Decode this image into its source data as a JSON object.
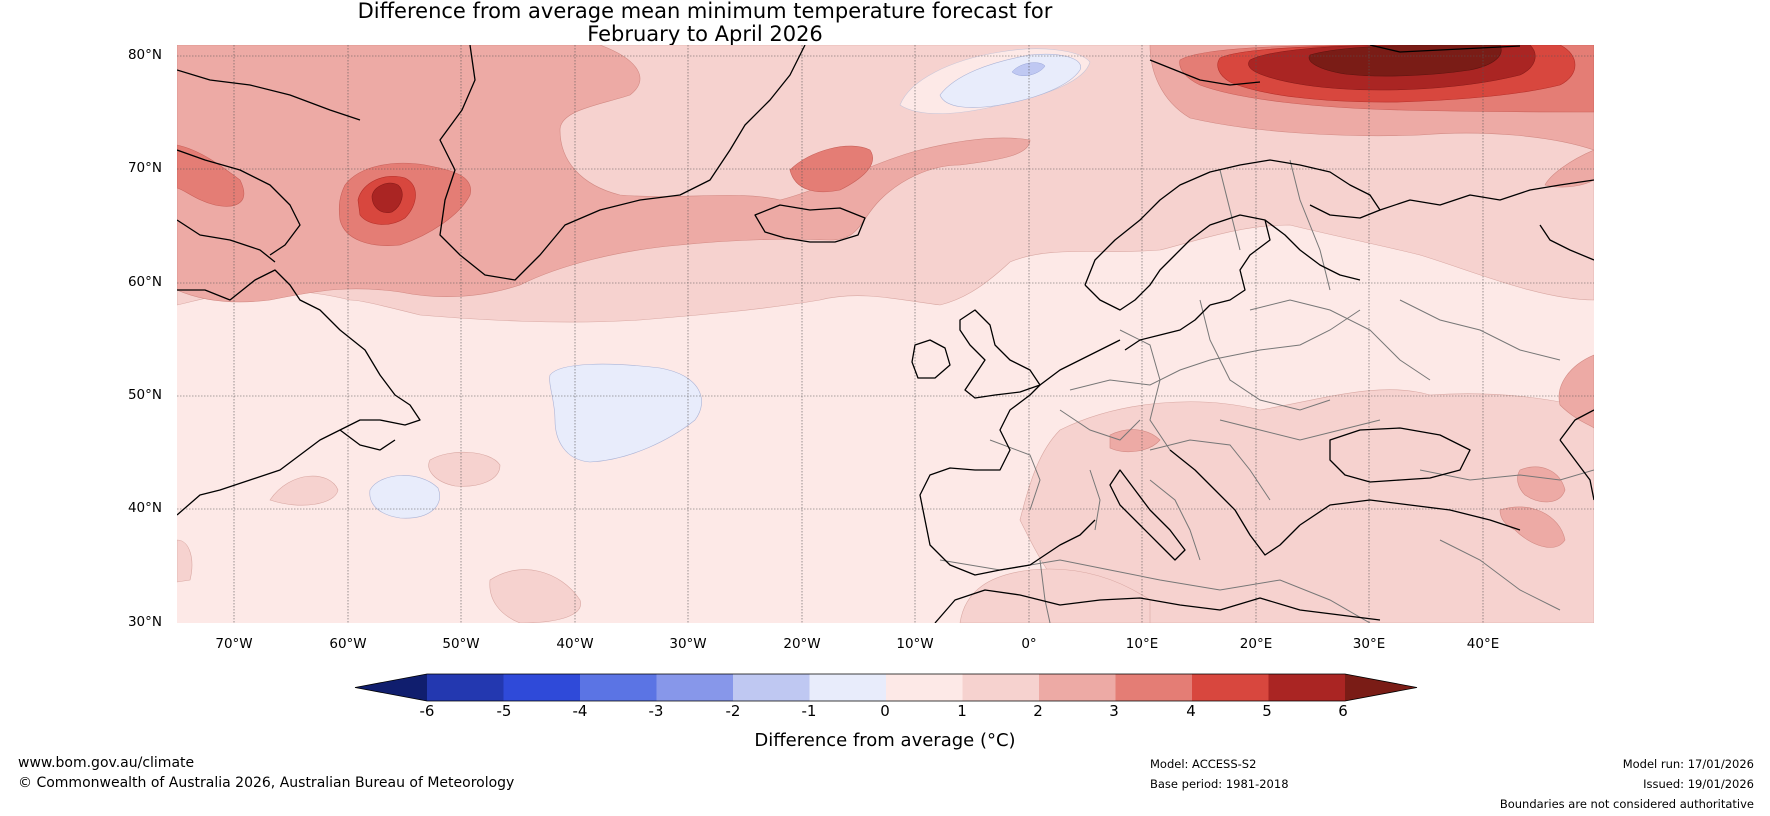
{
  "title": {
    "line1": "Difference from average mean minimum temperature forecast for",
    "line2": "February to April 2026"
  },
  "latitude_labels": [
    "80°N",
    "70°N",
    "60°N",
    "50°N",
    "40°N",
    "30°N"
  ],
  "longitude_labels": [
    "70°W",
    "60°W",
    "50°W",
    "40°W",
    "30°W",
    "20°W",
    "10°W",
    "0°",
    "10°E",
    "20°E",
    "30°E",
    "40°E"
  ],
  "colorbar": {
    "ticks": [
      "-6",
      "-5",
      "-4",
      "-3",
      "-2",
      "-1",
      "0",
      "1",
      "2",
      "3",
      "4",
      "5",
      "6"
    ],
    "label": "Difference from average (°C)",
    "colors": {
      "below_min": "#101e6e",
      "bins": [
        "#2338b0",
        "#2f4ad9",
        "#5b74e4",
        "#8797ea",
        "#bfc8f2",
        "#e8ecfb",
        "#fde9e7",
        "#f6d2cf",
        "#edaaa5",
        "#e47d75",
        "#d8473e",
        "#aa2523"
      ],
      "above_max": "#7a1c16"
    }
  },
  "footer": {
    "website": "www.bom.gov.au/climate",
    "copyright": "© Commonwealth of Australia 2026, Australian Bureau of Meteorology",
    "model": "Model: ACCESS-S2",
    "base_period": "Base period: 1981-2018",
    "model_run": "Model run: 17/01/2026",
    "issued": "Issued: 19/01/2026",
    "disclaimer": "Boundaries are not considered authoritative"
  }
}
